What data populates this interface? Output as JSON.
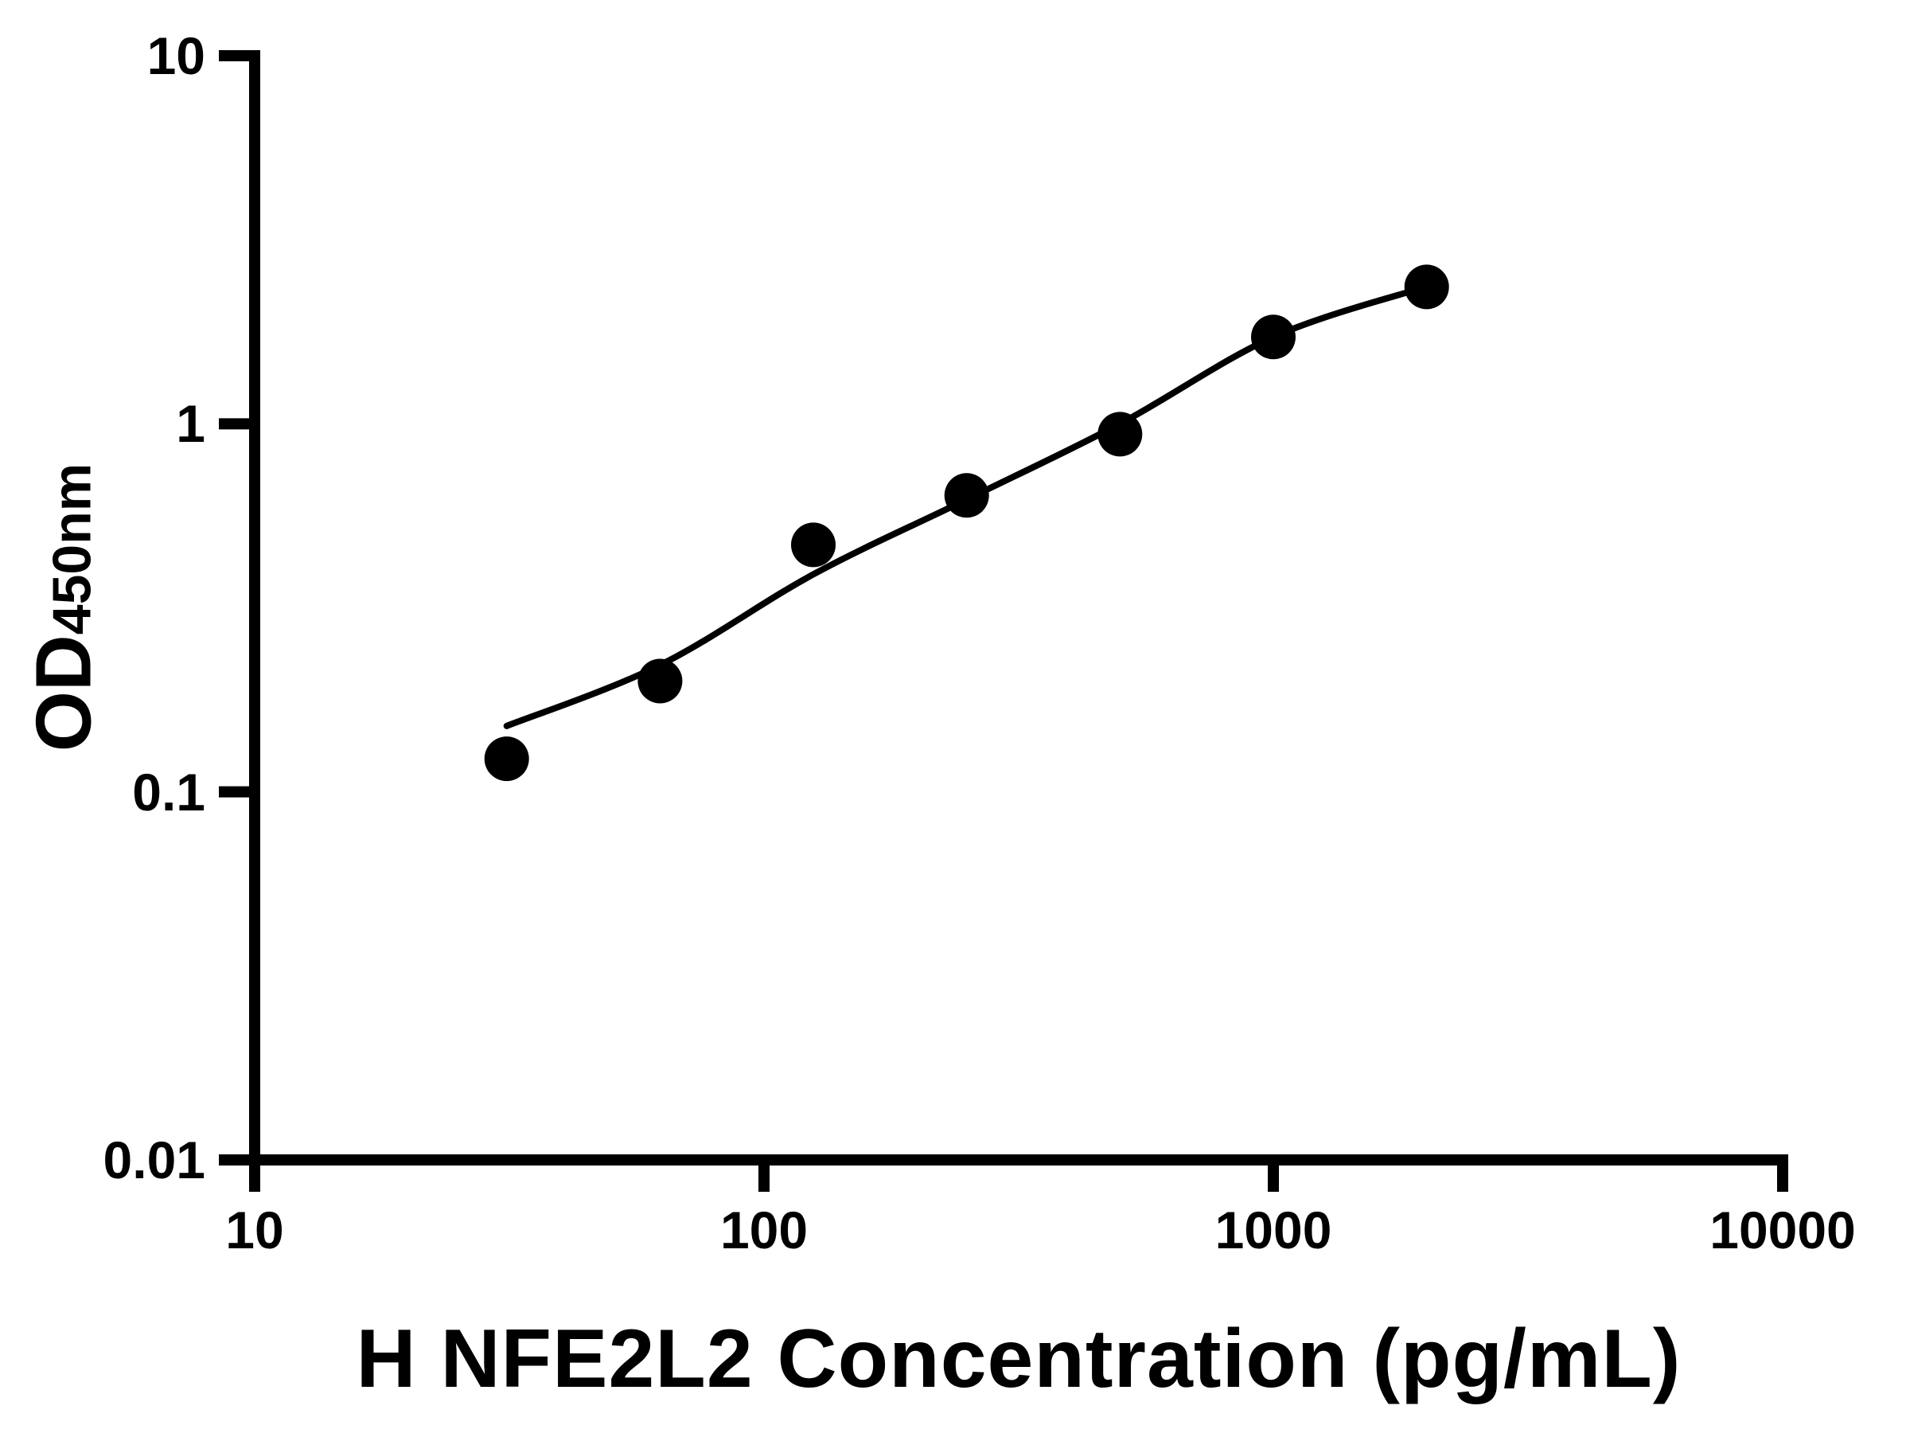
{
  "chart_data": {
    "type": "scatter",
    "title": "",
    "xlabel": "H NFE2L2 Concentration (pg/mL)",
    "ylabel": "OD",
    "ylabel_subscript": "450nm",
    "x_scale": "log",
    "y_scale": "log",
    "xlim": [
      10,
      10000
    ],
    "ylim": [
      0.01,
      10
    ],
    "grid": false,
    "legend": "none",
    "x_ticks": [
      10,
      100,
      1000,
      10000
    ],
    "x_tick_labels": [
      "10",
      "100",
      "1000",
      "10000"
    ],
    "y_ticks": [
      10,
      1,
      0.1,
      0.01
    ],
    "y_tick_labels": [
      "10",
      "1",
      "0.1",
      "0.01"
    ],
    "series": [
      {
        "name": "standard-points",
        "type": "scatter",
        "marker": "filled-circle",
        "color": "#000000",
        "points": [
          {
            "x": 31.25,
            "y": 0.123
          },
          {
            "x": 62.5,
            "y": 0.2
          },
          {
            "x": 125,
            "y": 0.469
          },
          {
            "x": 250,
            "y": 0.639
          },
          {
            "x": 500,
            "y": 0.937
          },
          {
            "x": 1000,
            "y": 1.721
          },
          {
            "x": 2000,
            "y": 2.355
          }
        ]
      },
      {
        "name": "fitted-curve",
        "type": "line",
        "color": "#000000",
        "points": [
          {
            "x": 31.25,
            "y": 0.151
          },
          {
            "x": 62.5,
            "y": 0.221
          },
          {
            "x": 125,
            "y": 0.39
          },
          {
            "x": 250,
            "y": 0.623
          },
          {
            "x": 500,
            "y": 1.0
          },
          {
            "x": 1000,
            "y": 1.721
          },
          {
            "x": 2000,
            "y": 2.36
          }
        ]
      }
    ],
    "colors": {
      "foreground": "#000000",
      "background": "#ffffff"
    }
  }
}
